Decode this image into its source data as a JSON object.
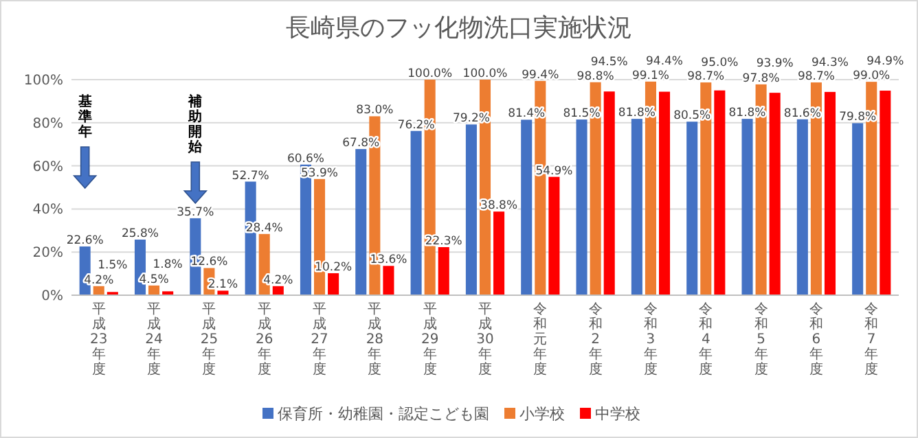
{
  "chart_data": {
    "type": "bar",
    "title": "長崎県のフッ化物洗口実施状況",
    "categories": [
      "平成23年度",
      "平成24年度",
      "平成25年度",
      "平成26年度",
      "平成27年度",
      "平成28年度",
      "平成29年度",
      "平成30年度",
      "令和元年度",
      "令和2年度",
      "令和3年度",
      "令和4年度",
      "令和5年度",
      "令和6年度",
      "令和7年度"
    ],
    "series": [
      {
        "name": "保育所・幼稚園・認定こども園",
        "color": "#4472c4",
        "values": [
          22.6,
          25.8,
          35.7,
          52.7,
          60.6,
          67.8,
          76.2,
          79.2,
          81.4,
          81.5,
          81.8,
          80.5,
          81.8,
          81.6,
          79.8
        ],
        "value_labels": [
          "22.6%",
          "25.8%",
          "35.7%",
          "52.7%",
          "60.6%",
          "67.8%",
          "76.2%",
          "79.2%",
          "81.4%",
          "81.5%",
          "81.8%",
          "80.5%",
          "81.8%",
          "81.6%",
          "79.8%"
        ]
      },
      {
        "name": "小学校",
        "color": "#ed7d31",
        "values": [
          4.2,
          4.5,
          12.6,
          28.4,
          53.9,
          83.0,
          100.0,
          100.0,
          99.4,
          98.8,
          99.1,
          98.7,
          97.8,
          98.7,
          99.0
        ],
        "value_labels": [
          "4.2%",
          "4.5%",
          "12.6%",
          "28.4%",
          "53.9%",
          "83.0%",
          "100.0%",
          "100.0%",
          "99.4%",
          "98.8%",
          "99.1%",
          "98.7%",
          "97.8%",
          "98.7%",
          "99.0%"
        ]
      },
      {
        "name": "中学校",
        "color": "#ff0000",
        "values": [
          1.5,
          1.8,
          2.1,
          4.2,
          10.2,
          13.6,
          22.3,
          38.8,
          54.9,
          94.5,
          94.4,
          95.0,
          93.9,
          94.3,
          94.9
        ],
        "value_labels": [
          "1.5%",
          "1.8%",
          "2.1%",
          "4.2%",
          "10.2%",
          "13.6%",
          "22.3%",
          "38.8%",
          "54.9%",
          "94.5%",
          "94.4%",
          "95.0%",
          "93.9%",
          "94.3%",
          "94.9%"
        ]
      }
    ],
    "ylim": [
      0,
      100
    ],
    "yticks": [
      {
        "value": 0,
        "label": "0%"
      },
      {
        "value": 20,
        "label": "20%"
      },
      {
        "value": 40,
        "label": "40%"
      },
      {
        "value": 60,
        "label": "60%"
      },
      {
        "value": 80,
        "label": "80%"
      },
      {
        "value": 100,
        "label": "100%"
      }
    ],
    "grid": "y",
    "legend": "bottom",
    "annotations": [
      "基準年",
      "補助開始"
    ]
  }
}
